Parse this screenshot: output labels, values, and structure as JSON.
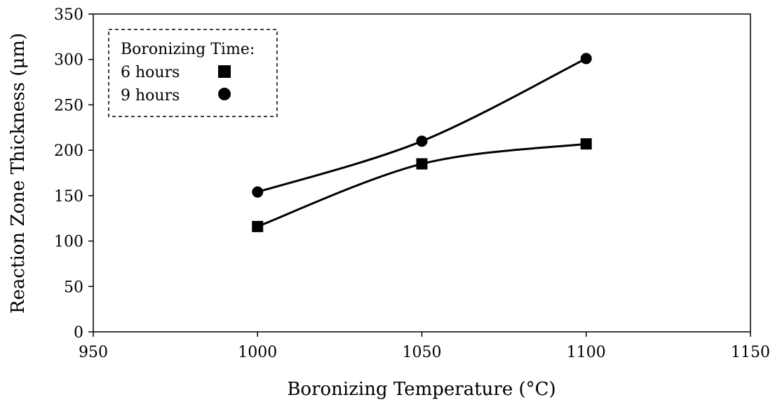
{
  "chart_data": {
    "type": "line",
    "xlabel": "Boronizing Temperature (°C)",
    "ylabel": "Reaction Zone Thickness (μm)",
    "xlim": [
      950,
      1150
    ],
    "ylim": [
      0,
      350
    ],
    "xticks": [
      "950",
      "1000",
      "1050",
      "1100",
      "1150"
    ],
    "yticks": [
      "0",
      "50",
      "100",
      "150",
      "200",
      "250",
      "300",
      "350"
    ],
    "grid": false,
    "smooth": true,
    "legend": {
      "title": "Boronizing Time:",
      "placement": "top-left",
      "border": "dashed"
    },
    "series": [
      {
        "name": "6 hours",
        "marker": "square",
        "color": "#000000",
        "x": [
          1000,
          1050,
          1100
        ],
        "y": [
          116,
          185,
          207
        ]
      },
      {
        "name": "9 hours",
        "marker": "circle",
        "color": "#000000",
        "x": [
          1000,
          1050,
          1100
        ],
        "y": [
          154,
          210,
          301
        ]
      }
    ]
  }
}
